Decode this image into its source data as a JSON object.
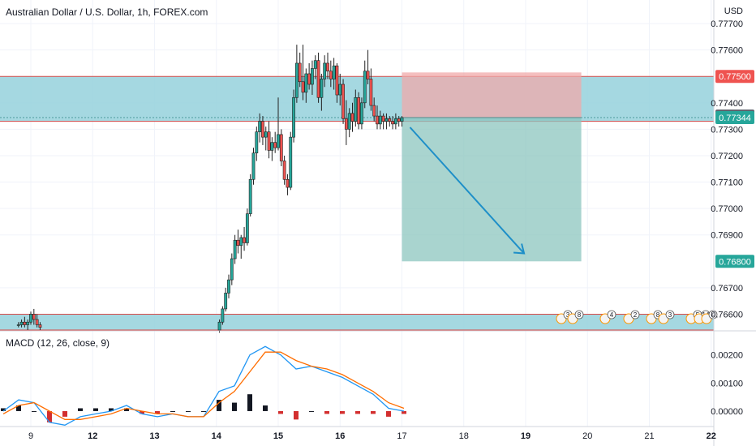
{
  "title": "Australian Dollar / U.S. Dollar, 1h, FOREX.com",
  "currency_label": "USD",
  "indicator_label": "MACD (12, 26, close, 9)",
  "price_axis": {
    "ylim": [
      0.7654,
      0.7778
    ],
    "ticks": [
      "0.77700",
      "0.77600",
      "0.77400",
      "0.77300",
      "0.77200",
      "0.77100",
      "0.77000",
      "0.76900",
      "0.76700",
      "0.76600"
    ]
  },
  "price_badges": [
    {
      "value": 0.775,
      "label": "0.77500",
      "color": "#ef5350"
    },
    {
      "value": 0.7735,
      "label": "0.77350",
      "color": "#5d606b"
    },
    {
      "value": 0.77344,
      "label": "0.77344",
      "color": "#26a69a"
    },
    {
      "value": 0.768,
      "label": "0.76800",
      "color": "#26a69a"
    }
  ],
  "macd_axis": {
    "ylim": [
      -0.00055,
      0.0028
    ],
    "ticks": [
      "0.00200",
      "0.00100",
      "0.00000"
    ]
  },
  "time_axis": {
    "labels": [
      {
        "t": 2,
        "label": "9"
      },
      {
        "t": 6,
        "label": "12"
      },
      {
        "t": 10,
        "label": "13"
      },
      {
        "t": 14,
        "label": "14"
      },
      {
        "t": 18,
        "label": "15"
      },
      {
        "t": 22,
        "label": "16"
      },
      {
        "t": 26,
        "label": "17"
      },
      {
        "t": 30,
        "label": "18"
      },
      {
        "t": 34,
        "label": "19"
      },
      {
        "t": 38,
        "label": "20"
      },
      {
        "t": 42,
        "label": "21"
      },
      {
        "t": 46,
        "label": "22"
      }
    ],
    "bold": [
      "12",
      "13",
      "14",
      "15",
      "16",
      "19",
      "22"
    ]
  },
  "colors": {
    "zone_fill": "#95d1dc",
    "zone_line": "#d84a48",
    "up_candle": "#26a69a",
    "down_candle": "#ef5350",
    "macd_line": "#2196f3",
    "signal_line": "#ff6d00",
    "arrow": "#1e8fc8",
    "stop_box": "#f0a9a9",
    "target_box": "#8cc5bf"
  },
  "zones": [
    {
      "top": 0.775,
      "bottom": 0.7733
    },
    {
      "top": 0.766,
      "bottom": 0.7654
    }
  ],
  "position": {
    "type": "short",
    "t_start": 26,
    "t_end": 37.6,
    "entry": 0.77344,
    "stop": 0.77515,
    "target": 0.768
  },
  "event_markers": [
    "3",
    "8",
    "4",
    "2",
    "8",
    "3",
    "5",
    "14",
    "4"
  ],
  "chart_data": {
    "type": "candlestick",
    "series": [
      {
        "name": "AUD/USD",
        "x": [
          1.2,
          1.4,
          1.6,
          1.8,
          2.0,
          2.2,
          2.4,
          2.6,
          14.2,
          14.4,
          14.6,
          14.8,
          15.0,
          15.2,
          15.4,
          15.6,
          15.8,
          16.0,
          16.2,
          16.4,
          16.6,
          16.8,
          17.0,
          17.2,
          17.4,
          17.6,
          17.8,
          18.0,
          18.2,
          18.4,
          18.6,
          18.8,
          19.0,
          19.2,
          19.4,
          19.6,
          19.8,
          20.0,
          20.2,
          20.4,
          20.6,
          20.8,
          21.0,
          21.2,
          21.4,
          21.6,
          21.8,
          22.0,
          22.2,
          22.4,
          22.6,
          22.8,
          23.0,
          23.2,
          23.4,
          23.6,
          23.8,
          24.0,
          24.2,
          24.4,
          24.6,
          24.8,
          25.0,
          25.2,
          25.4,
          25.6,
          25.8,
          26.0
        ],
        "ohlc": [
          [
            0.7656,
            0.7657,
            0.7655,
            0.7656
          ],
          [
            0.7656,
            0.7658,
            0.7655,
            0.7657
          ],
          [
            0.7657,
            0.7659,
            0.7655,
            0.7656
          ],
          [
            0.7656,
            0.7658,
            0.7654,
            0.7657
          ],
          [
            0.7657,
            0.7661,
            0.7656,
            0.766
          ],
          [
            0.766,
            0.7662,
            0.7656,
            0.7658
          ],
          [
            0.7658,
            0.766,
            0.7655,
            0.7656
          ],
          [
            0.7656,
            0.7657,
            0.7654,
            0.7655
          ],
          [
            0.7654,
            0.7658,
            0.7653,
            0.7657
          ],
          [
            0.7657,
            0.7663,
            0.7656,
            0.7662
          ],
          [
            0.7662,
            0.767,
            0.7661,
            0.7668
          ],
          [
            0.7668,
            0.7675,
            0.7666,
            0.7673
          ],
          [
            0.7673,
            0.7683,
            0.7671,
            0.7681
          ],
          [
            0.7681,
            0.769,
            0.7679,
            0.7688
          ],
          [
            0.7688,
            0.7692,
            0.7683,
            0.7686
          ],
          [
            0.7686,
            0.769,
            0.7681,
            0.7689
          ],
          [
            0.7689,
            0.7693,
            0.7684,
            0.7687
          ],
          [
            0.7687,
            0.77,
            0.7686,
            0.7698
          ],
          [
            0.7698,
            0.7713,
            0.7697,
            0.7711
          ],
          [
            0.7711,
            0.7723,
            0.7709,
            0.7721
          ],
          [
            0.7721,
            0.7731,
            0.7718,
            0.7729
          ],
          [
            0.7729,
            0.7736,
            0.7725,
            0.7733
          ],
          [
            0.7733,
            0.7735,
            0.7724,
            0.7727
          ],
          [
            0.7727,
            0.7731,
            0.7722,
            0.7729
          ],
          [
            0.7729,
            0.7733,
            0.7719,
            0.7722
          ],
          [
            0.7722,
            0.7727,
            0.7718,
            0.7725
          ],
          [
            0.7725,
            0.7729,
            0.7721,
            0.7723
          ],
          [
            0.7723,
            0.7742,
            0.7722,
            0.7728
          ],
          [
            0.7728,
            0.773,
            0.7716,
            0.7718
          ],
          [
            0.7718,
            0.772,
            0.7709,
            0.7711
          ],
          [
            0.7711,
            0.7713,
            0.7705,
            0.7708
          ],
          [
            0.7708,
            0.7729,
            0.7707,
            0.7727
          ],
          [
            0.7727,
            0.7745,
            0.7725,
            0.7742
          ],
          [
            0.7742,
            0.7762,
            0.774,
            0.7755
          ],
          [
            0.7755,
            0.7759,
            0.7746,
            0.7748
          ],
          [
            0.7748,
            0.7762,
            0.7741,
            0.7744
          ],
          [
            0.7744,
            0.7753,
            0.774,
            0.7751
          ],
          [
            0.7751,
            0.7755,
            0.7745,
            0.7747
          ],
          [
            0.7747,
            0.7756,
            0.7743,
            0.7753
          ],
          [
            0.7753,
            0.7758,
            0.7749,
            0.7756
          ],
          [
            0.7756,
            0.7759,
            0.774,
            0.7742
          ],
          [
            0.7742,
            0.7751,
            0.7737,
            0.7749
          ],
          [
            0.7749,
            0.7758,
            0.7746,
            0.7755
          ],
          [
            0.7755,
            0.7759,
            0.7749,
            0.7752
          ],
          [
            0.7752,
            0.7756,
            0.7746,
            0.7749
          ],
          [
            0.7749,
            0.7757,
            0.7745,
            0.7754
          ],
          [
            0.7754,
            0.7755,
            0.774,
            0.7743
          ],
          [
            0.7743,
            0.7751,
            0.7739,
            0.7747
          ],
          [
            0.7747,
            0.7749,
            0.7732,
            0.7734
          ],
          [
            0.7734,
            0.7741,
            0.7724,
            0.773
          ],
          [
            0.773,
            0.7738,
            0.7727,
            0.7736
          ],
          [
            0.7736,
            0.774,
            0.7729,
            0.7733
          ],
          [
            0.7733,
            0.7745,
            0.7731,
            0.7742
          ],
          [
            0.7742,
            0.7744,
            0.773,
            0.7732
          ],
          [
            0.7732,
            0.7742,
            0.773,
            0.774
          ],
          [
            0.774,
            0.7756,
            0.7738,
            0.7752
          ],
          [
            0.7752,
            0.776,
            0.7747,
            0.7749
          ],
          [
            0.7749,
            0.7753,
            0.7737,
            0.7739
          ],
          [
            0.7739,
            0.7742,
            0.7733,
            0.7735
          ],
          [
            0.7735,
            0.7739,
            0.773,
            0.7732
          ],
          [
            0.7732,
            0.7737,
            0.773,
            0.7735
          ],
          [
            0.7735,
            0.7736,
            0.773,
            0.7733
          ],
          [
            0.7733,
            0.7736,
            0.773,
            0.7734
          ],
          [
            0.7734,
            0.7735,
            0.7731,
            0.7733
          ],
          [
            0.7733,
            0.7735,
            0.773,
            0.7732
          ],
          [
            0.7732,
            0.7736,
            0.773,
            0.7734
          ],
          [
            0.7734,
            0.7735,
            0.7731,
            0.7733
          ],
          [
            0.7733,
            0.7735,
            0.7731,
            0.77344
          ]
        ]
      }
    ],
    "macd": {
      "t": [
        0,
        1,
        2,
        3,
        4,
        5,
        6,
        7,
        8,
        9,
        10,
        11,
        12,
        13,
        14,
        15,
        16,
        17,
        18,
        19,
        20,
        21,
        22,
        23,
        24,
        25,
        26
      ],
      "macd": [
        0.0,
        0.0004,
        0.0003,
        -0.0004,
        -0.0005,
        -0.0002,
        -0.0001,
        0.0,
        0.0002,
        -0.0001,
        -0.0002,
        -0.0001,
        -0.0002,
        -0.0002,
        0.0007,
        0.0009,
        0.002,
        0.0023,
        0.002,
        0.0015,
        0.0016,
        0.0014,
        0.0012,
        0.0009,
        0.0006,
        0.0001,
        0.0
      ],
      "signal": [
        -0.0001,
        0.0002,
        0.0003,
        0.0,
        -0.0003,
        -0.0003,
        -0.0002,
        -0.0001,
        0.0001,
        0.0,
        -0.0001,
        -0.0001,
        -0.0002,
        -0.0002,
        0.0003,
        0.0007,
        0.0014,
        0.0021,
        0.0021,
        0.0018,
        0.0016,
        0.0015,
        0.0013,
        0.001,
        0.0007,
        0.0003,
        0.0001
      ],
      "histogram": [
        0.0001,
        0.0002,
        0.0,
        -0.0004,
        -0.0002,
        0.0001,
        0.0001,
        0.0001,
        0.0001,
        -0.0001,
        -0.0001,
        0.0,
        0.0,
        0.0,
        0.0004,
        0.0003,
        0.0006,
        0.0002,
        -0.0001,
        -0.0003,
        0.0,
        -0.0001,
        -0.0001,
        -0.0001,
        -0.0001,
        -0.0002,
        -0.0001
      ]
    }
  }
}
